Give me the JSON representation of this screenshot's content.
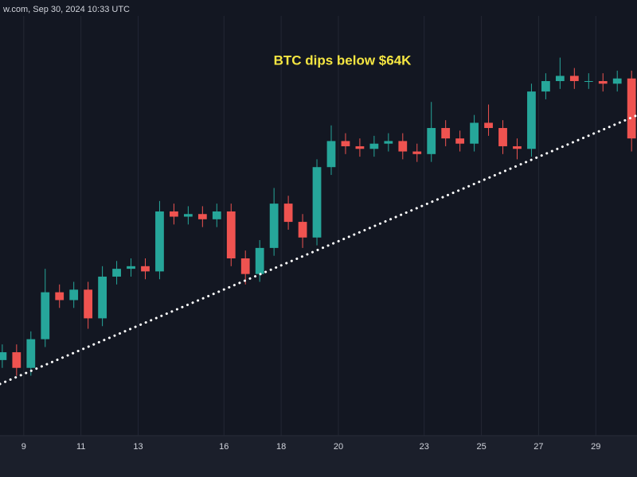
{
  "chart_data": {
    "type": "candlestick",
    "title": "w.com, Sep 30, 2024 10:33 UTC",
    "annotation": "BTC dips below $64K",
    "up_color": "#26a69a",
    "down_color": "#ef5350",
    "grid": true,
    "xlim": [
      8.17,
      30.44
    ],
    "xticks": [
      9,
      11,
      13,
      16,
      18,
      20,
      23,
      25,
      27,
      29
    ],
    "ylim": [
      52100,
      68200
    ],
    "x": [
      8.25,
      8.75,
      9.25,
      9.75,
      10.25,
      10.75,
      11.25,
      11.75,
      12.25,
      12.75,
      13.25,
      13.75,
      14.25,
      14.75,
      15.25,
      15.75,
      16.25,
      16.75,
      17.25,
      17.75,
      18.25,
      18.75,
      19.25,
      19.75,
      20.25,
      20.75,
      21.25,
      21.75,
      22.25,
      22.75,
      23.25,
      23.75,
      24.25,
      24.75,
      25.25,
      25.75,
      26.25,
      26.75,
      27.25,
      27.75,
      28.25,
      28.75,
      29.25,
      29.75,
      30.25
    ],
    "open": [
      55000,
      55300,
      54700,
      55800,
      57600,
      57300,
      57700,
      56600,
      58200,
      58500,
      58600,
      58400,
      60700,
      60500,
      60600,
      60400,
      60700,
      58900,
      58300,
      59300,
      61000,
      60300,
      59700,
      62400,
      63400,
      63200,
      63100,
      63300,
      63400,
      63000,
      62900,
      63900,
      63500,
      63300,
      64100,
      63900,
      63200,
      63100,
      65300,
      65700,
      65900,
      65700,
      65700,
      65600,
      65800
    ],
    "high": [
      55600,
      55600,
      56100,
      58500,
      57900,
      58000,
      58000,
      58600,
      58800,
      58900,
      58900,
      61100,
      61000,
      60900,
      60900,
      61000,
      61000,
      59200,
      59600,
      61600,
      61300,
      60600,
      62700,
      64000,
      63700,
      63500,
      63600,
      63700,
      63700,
      63300,
      64900,
      64200,
      63800,
      64400,
      64800,
      64200,
      63500,
      65600,
      66000,
      66600,
      66200,
      66000,
      66000,
      66100,
      66100
    ],
    "low": [
      54700,
      54400,
      54400,
      55500,
      57000,
      57000,
      56200,
      56300,
      57900,
      58200,
      58100,
      58100,
      60200,
      60200,
      60100,
      60100,
      58600,
      57900,
      58000,
      59000,
      60000,
      59300,
      59400,
      62100,
      62900,
      62800,
      62800,
      63000,
      62700,
      62600,
      62600,
      63200,
      63000,
      63000,
      63600,
      62900,
      62700,
      62800,
      65000,
      65400,
      65400,
      65400,
      65300,
      65300,
      63000
    ],
    "close": [
      55300,
      54700,
      55800,
      57600,
      57300,
      57700,
      56600,
      58200,
      58500,
      58600,
      58400,
      60700,
      60500,
      60600,
      60400,
      60700,
      58900,
      58300,
      59300,
      61000,
      60300,
      59700,
      62400,
      63400,
      63200,
      63100,
      63300,
      63400,
      63000,
      62900,
      63900,
      63500,
      63300,
      64100,
      63900,
      63200,
      63100,
      65300,
      65700,
      65900,
      65700,
      65700,
      65600,
      65800,
      63500
    ]
  }
}
